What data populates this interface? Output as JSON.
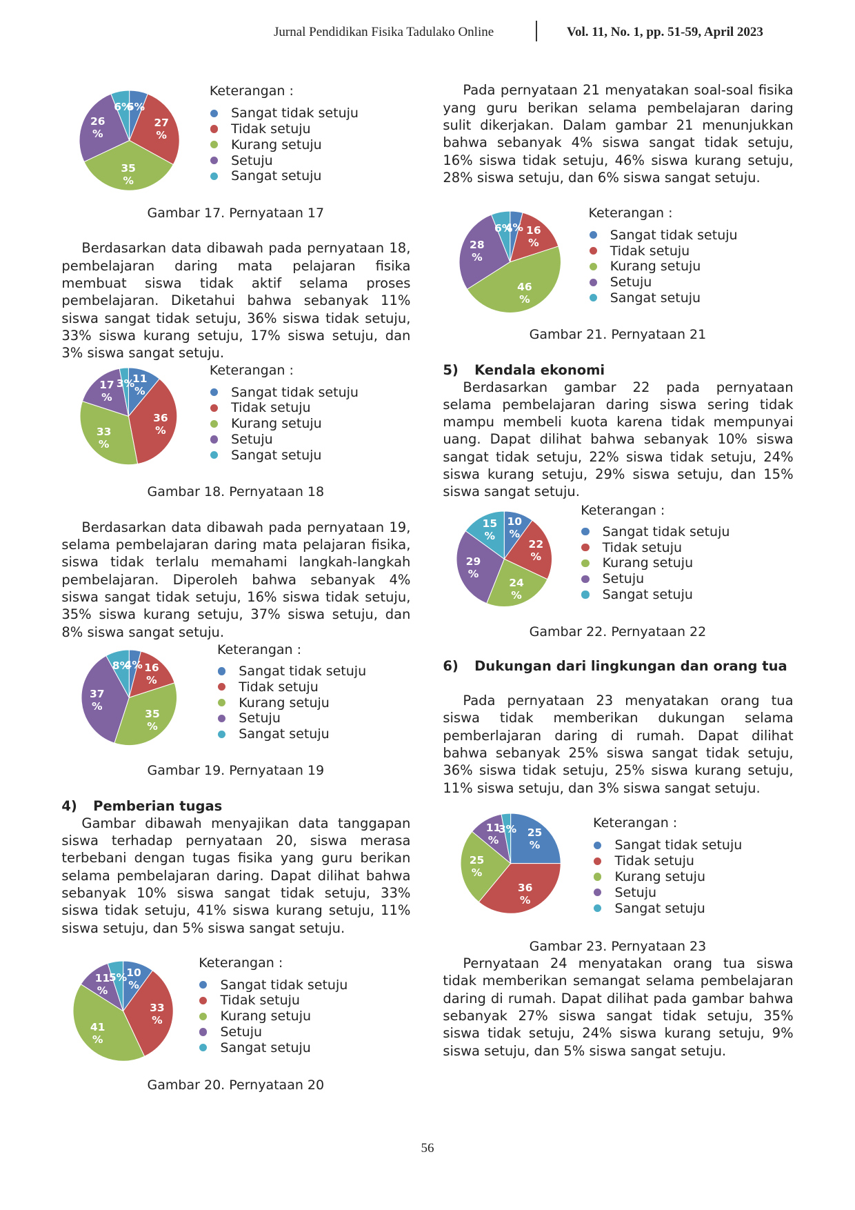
{
  "header": {
    "journal": "Jurnal Pendidikan Fisika Tadulako Online",
    "volume": "Vol. 11, No. 1, pp. 51-59, April 2023"
  },
  "paragraphs": [
    "Berdasarkan data dibawah pada pernyataan 18, pembelajaran daring mata pelajaran fisika membuat siswa tidak aktif selama proses pembelajaran. Diketahui bahwa sebanyak 11% siswa sangat tidak setuju, 36% siswa tidak setuju, 33% siswa kurang setuju, 17% siswa setuju, dan 3% siswa sangat setuju.",
    "Berdasarkan data dibawah pada pernyataan 19, selama pembelajaran daring mata pelajaran fisika, siswa tidak terlalu memahami langkah-langkah pembelajaran. Diperoleh bahwa sebanyak 4% siswa sangat tidak setuju, 16% siswa tidak setuju, 35% siswa kurang setuju, 37% siswa setuju, dan 8% siswa sangat setuju.",
    "Gambar dibawah menyajikan data tanggapan siswa terhadap pernyataan 20, siswa merasa terbebani dengan tugas fisika yang guru berikan selama pembelajaran daring. Dapat dilihat bahwa sebanyak 10% siswa sangat tidak setuju, 33% siswa tidak setuju, 41% siswa kurang setuju, 11% siswa setuju, dan 5% siswa sangat setuju.",
    "Pada pernyataan 21 menyatakan soal-soal fisika yang guru berikan selama pembelajaran daring sulit dikerjakan. Dalam gambar 21 menunjukkan bahwa sebanyak 4% siswa sangat tidak setuju, 16% siswa tidak setuju, 46% siswa kurang setuju, 28% siswa setuju, dan 6% siswa sangat setuju.",
    "Berdasarkan gambar 22 pada pernyataan selama pembelajaran daring siswa sering tidak mampu membeli kuota karena tidak mempunyai uang. Dapat dilihat bahwa sebanyak 10% siswa sangat tidak setuju, 22% siswa tidak setuju, 24% siswa kurang setuju, 29% siswa setuju, dan 15% siswa sangat setuju.",
    "Pada pernyataan 23 menyatakan orang tua siswa tidak memberikan dukungan selama pemberlajaran daring di rumah. Dapat dilihat bahwa sebanyak 25% siswa sangat tidak setuju, 36% siswa tidak setuju, 25% siswa kurang setuju, 11% siswa setuju, dan 3% siswa sangat setuju.",
    "Pernyataan 24 menyatakan orang tua siswa tidak memberikan semangat selama pembelajaran daring di rumah. Dapat dilihat pada gambar bahwa sebanyak 27% siswa sangat tidak setuju, 35% siswa tidak setuju, 24% siswa kurang setuju, 9% siswa setuju, dan 5% siswa sangat setuju."
  ],
  "headings": [
    {
      "number": "4)",
      "text": "Pemberian tugas"
    },
    {
      "number": "5)",
      "text": "Kendala ekonomi"
    },
    {
      "number": "6)",
      "text": "Dukungan dari lingkungan dan orang tua"
    }
  ],
  "chart_data": [
    {
      "type": "pie",
      "title": "Gambar 17. Pernyataan 17",
      "legend_title": "Keterangan :",
      "categories": [
        "Sangat tidak setuju",
        "Tidak setuju",
        "Kurang setuju",
        "Setuju",
        "Sangat setuju"
      ],
      "values": [
        6,
        27,
        35,
        26,
        6
      ],
      "value_labels": [
        "6%",
        "27 %",
        "35 %",
        "26 %",
        "6%"
      ],
      "colors": [
        "#4f81bd",
        "#c0504d",
        "#9bbb59",
        "#8064a2",
        "#4bacc6"
      ]
    },
    {
      "type": "pie",
      "title": "Gambar 18. Pernyataan 18",
      "legend_title": "Keterangan :",
      "categories": [
        "Sangat tidak setuju",
        "Tidak setuju",
        "Kurang setuju",
        "Setuju",
        "Sangat setuju"
      ],
      "values": [
        11,
        36,
        33,
        17,
        3
      ],
      "value_labels": [
        "11 %",
        "36 %",
        "33 %",
        "17 %",
        "3%"
      ],
      "colors": [
        "#4f81bd",
        "#c0504d",
        "#9bbb59",
        "#8064a2",
        "#4bacc6"
      ]
    },
    {
      "type": "pie",
      "title": "Gambar 19. Pernyataan 19",
      "legend_title": "Keterangan :",
      "categories": [
        "Sangat tidak setuju",
        "Tidak setuju",
        "Kurang setuju",
        "Setuju",
        "Sangat setuju"
      ],
      "values": [
        4,
        16,
        35,
        37,
        8
      ],
      "value_labels": [
        "4%",
        "16 %",
        "35 %",
        "37 %",
        "8%"
      ],
      "colors": [
        "#4f81bd",
        "#c0504d",
        "#9bbb59",
        "#8064a2",
        "#4bacc6"
      ]
    },
    {
      "type": "pie",
      "title": "Gambar 20. Pernyataan 20",
      "legend_title": "Keterangan :",
      "categories": [
        "Sangat tidak setuju",
        "Tidak setuju",
        "Kurang setuju",
        "Setuju",
        "Sangat setuju"
      ],
      "values": [
        10,
        33,
        41,
        11,
        5
      ],
      "value_labels": [
        "10 %",
        "33 %",
        "41 %",
        "11 %",
        "5%"
      ],
      "colors": [
        "#4f81bd",
        "#c0504d",
        "#9bbb59",
        "#8064a2",
        "#4bacc6"
      ]
    },
    {
      "type": "pie",
      "title": "Gambar 21. Pernyataan 21",
      "legend_title": "Keterangan :",
      "categories": [
        "Sangat tidak setuju",
        "Tidak setuju",
        "Kurang setuju",
        "Setuju",
        "Sangat setuju"
      ],
      "values": [
        4,
        16,
        46,
        28,
        6
      ],
      "value_labels": [
        "4%",
        "16 %",
        "46 %",
        "28 %",
        "6%"
      ],
      "colors": [
        "#4f81bd",
        "#c0504d",
        "#9bbb59",
        "#8064a2",
        "#4bacc6"
      ]
    },
    {
      "type": "pie",
      "title": "Gambar 22. Pernyataan 22",
      "legend_title": "Keterangan :",
      "categories": [
        "Sangat tidak setuju",
        "Tidak setuju",
        "Kurang setuju",
        "Setuju",
        "Sangat setuju"
      ],
      "values": [
        10,
        22,
        24,
        29,
        15
      ],
      "value_labels": [
        "10 %",
        "22 %",
        "24 %",
        "29 %",
        "15 %"
      ],
      "colors": [
        "#4f81bd",
        "#c0504d",
        "#9bbb59",
        "#8064a2",
        "#4bacc6"
      ]
    },
    {
      "type": "pie",
      "title": "Gambar 23. Pernyataan 23",
      "legend_title": "Keterangan :",
      "categories": [
        "Sangat tidak setuju",
        "Tidak setuju",
        "Kurang setuju",
        "Setuju",
        "Sangat setuju"
      ],
      "values": [
        25,
        36,
        25,
        11,
        3
      ],
      "value_labels": [
        "25 %",
        "36 %",
        "25 %",
        "11 %",
        "3%"
      ],
      "colors": [
        "#4f81bd",
        "#c0504d",
        "#9bbb59",
        "#8064a2",
        "#4bacc6"
      ]
    }
  ],
  "page_number": 56
}
